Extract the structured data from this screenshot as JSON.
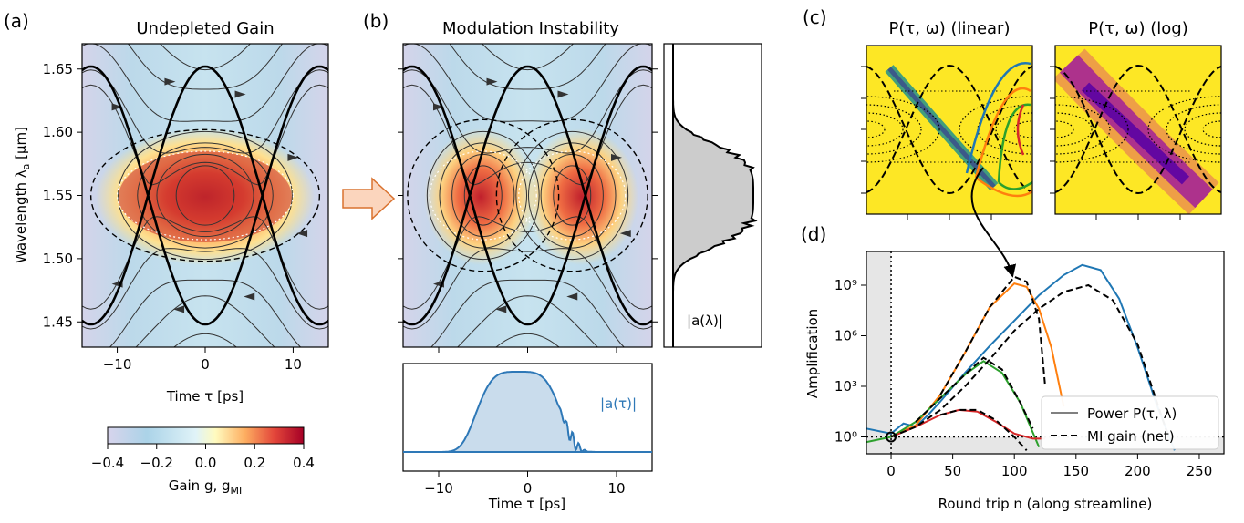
{
  "panels": {
    "a": {
      "label": "(a)",
      "title": "Undepleted Gain",
      "xlabel": "Time τ [ps]",
      "ylabel": "Wavelength λ",
      "ylabel_sub": "a",
      "ylabel_unit": " [μm]",
      "xticks": [
        "−10",
        "0",
        "10"
      ],
      "yticks": [
        "1.45",
        "1.50",
        "1.55",
        "1.60",
        "1.65"
      ]
    },
    "colorbar": {
      "ticks": [
        "−0.4",
        "−0.2",
        "0.0",
        "0.2",
        "0.4"
      ],
      "label": "Gain g, g",
      "label_sub": "MI",
      "range": [
        -0.4,
        0.4
      ]
    },
    "b": {
      "label": "(b)",
      "title": "Modulation Instability",
      "xlabel": "Time τ [ps]",
      "xticks": [
        "−10",
        "0",
        "10"
      ],
      "side_label": "|a(λ)|",
      "bottom_label": "|a(τ)|"
    },
    "c": {
      "label": "(c)",
      "title_linear": "P(τ, ω) (linear)",
      "title_log": "P(τ, ω) (log)"
    },
    "d": {
      "label": "(d)",
      "xlabel": "Round trip n (along streamline)",
      "ylabel": "Amplification",
      "xticks": [
        "0",
        "50",
        "100",
        "150",
        "200",
        "250"
      ],
      "yticks": [
        "10⁰",
        "10³",
        "10⁶",
        "10⁹"
      ],
      "legend": [
        {
          "label": "Power P(τ, λ)",
          "style": "solid",
          "color": "#808080"
        },
        {
          "label": "MI gain (net)",
          "style": "dashed",
          "color": "#000000"
        }
      ]
    }
  },
  "chart_data": [
    {
      "type": "heatmap",
      "title": "Undepleted Gain",
      "xlabel": "Time τ [ps]",
      "ylabel": "Wavelength λa [μm]",
      "xlim": [
        -14,
        14
      ],
      "ylim": [
        1.43,
        1.67
      ],
      "colormap_range": [
        -0.4,
        0.4
      ],
      "gain_peak": {
        "x": 0,
        "y": 1.55,
        "value": 0.4
      },
      "separatrix_center": {
        "x": 0,
        "y": 1.55
      },
      "separatrix_amplitude": 0.102
    },
    {
      "type": "heatmap",
      "title": "Modulation Instability",
      "xlabel": "Time τ [ps]",
      "xlim": [
        -14,
        14
      ],
      "ylim": [
        1.43,
        1.67
      ],
      "gain_lobes": [
        {
          "x": -5,
          "y": 1.55
        },
        {
          "x": 5,
          "y": 1.55
        }
      ]
    },
    {
      "type": "line",
      "xlabel": "Round trip n (along streamline)",
      "ylabel": "Amplification",
      "xlim": [
        -20,
        270
      ],
      "ylim_log10": [
        -1,
        11
      ],
      "yscale": "log",
      "legend_position": "lower-right",
      "series": [
        {
          "color": "#1f77b4",
          "x": [
            -20,
            0,
            10,
            20,
            30,
            40,
            60,
            80,
            100,
            120,
            140,
            155,
            170,
            185,
            200,
            215,
            230
          ],
          "log10y": [
            0.5,
            0.2,
            0.8,
            0.6,
            1.3,
            2.1,
            3.8,
            5.4,
            6.9,
            8.4,
            9.6,
            10.2,
            9.9,
            8.2,
            5.3,
            2.0,
            -0.8
          ]
        },
        {
          "color": "#ff7f0e",
          "x": [
            0,
            20,
            40,
            60,
            80,
            100,
            110,
            120,
            130,
            140
          ],
          "log10y": [
            0,
            0.7,
            2.5,
            5.0,
            7.7,
            9.1,
            8.9,
            7.6,
            5.3,
            1.8
          ]
        },
        {
          "color": "#2ca02c",
          "x": [
            -20,
            0,
            20,
            40,
            60,
            75,
            90,
            105,
            120
          ],
          "log10y": [
            -0.3,
            0,
            0.9,
            2.3,
            3.7,
            4.5,
            3.8,
            2.0,
            -0.6
          ]
        },
        {
          "color": "#d62728",
          "x": [
            0,
            20,
            40,
            55,
            70,
            85,
            100,
            115,
            125
          ],
          "log10y": [
            0,
            0.6,
            1.3,
            1.6,
            1.5,
            0.9,
            0.2,
            -0.1,
            -0.1
          ]
        },
        {
          "color": "#000000",
          "style": "dashed",
          "x": [
            0,
            20,
            40,
            60,
            80,
            100,
            120,
            140,
            160,
            180,
            200,
            225
          ],
          "log10y": [
            0,
            0.6,
            1.6,
            3.0,
            4.6,
            6.3,
            7.6,
            8.6,
            9.0,
            8.1,
            5.5,
            0
          ]
        },
        {
          "color": "#000000",
          "style": "dashed",
          "x": [
            40,
            60,
            80,
            100,
            110,
            120,
            125
          ],
          "log10y": [
            2.5,
            5.0,
            7.7,
            9.5,
            9.2,
            7.0,
            3.0
          ]
        },
        {
          "color": "#000000",
          "style": "dashed",
          "x": [
            20,
            40,
            60,
            75,
            90,
            105,
            115
          ],
          "log10y": [
            0.9,
            2.3,
            3.7,
            4.7,
            4.0,
            2.0,
            0.5
          ]
        },
        {
          "color": "#000000",
          "style": "dashed",
          "x": [
            40,
            55,
            70,
            85,
            100,
            110
          ],
          "log10y": [
            1.3,
            1.6,
            1.6,
            1.0,
            0,
            -0.8
          ]
        }
      ]
    }
  ]
}
